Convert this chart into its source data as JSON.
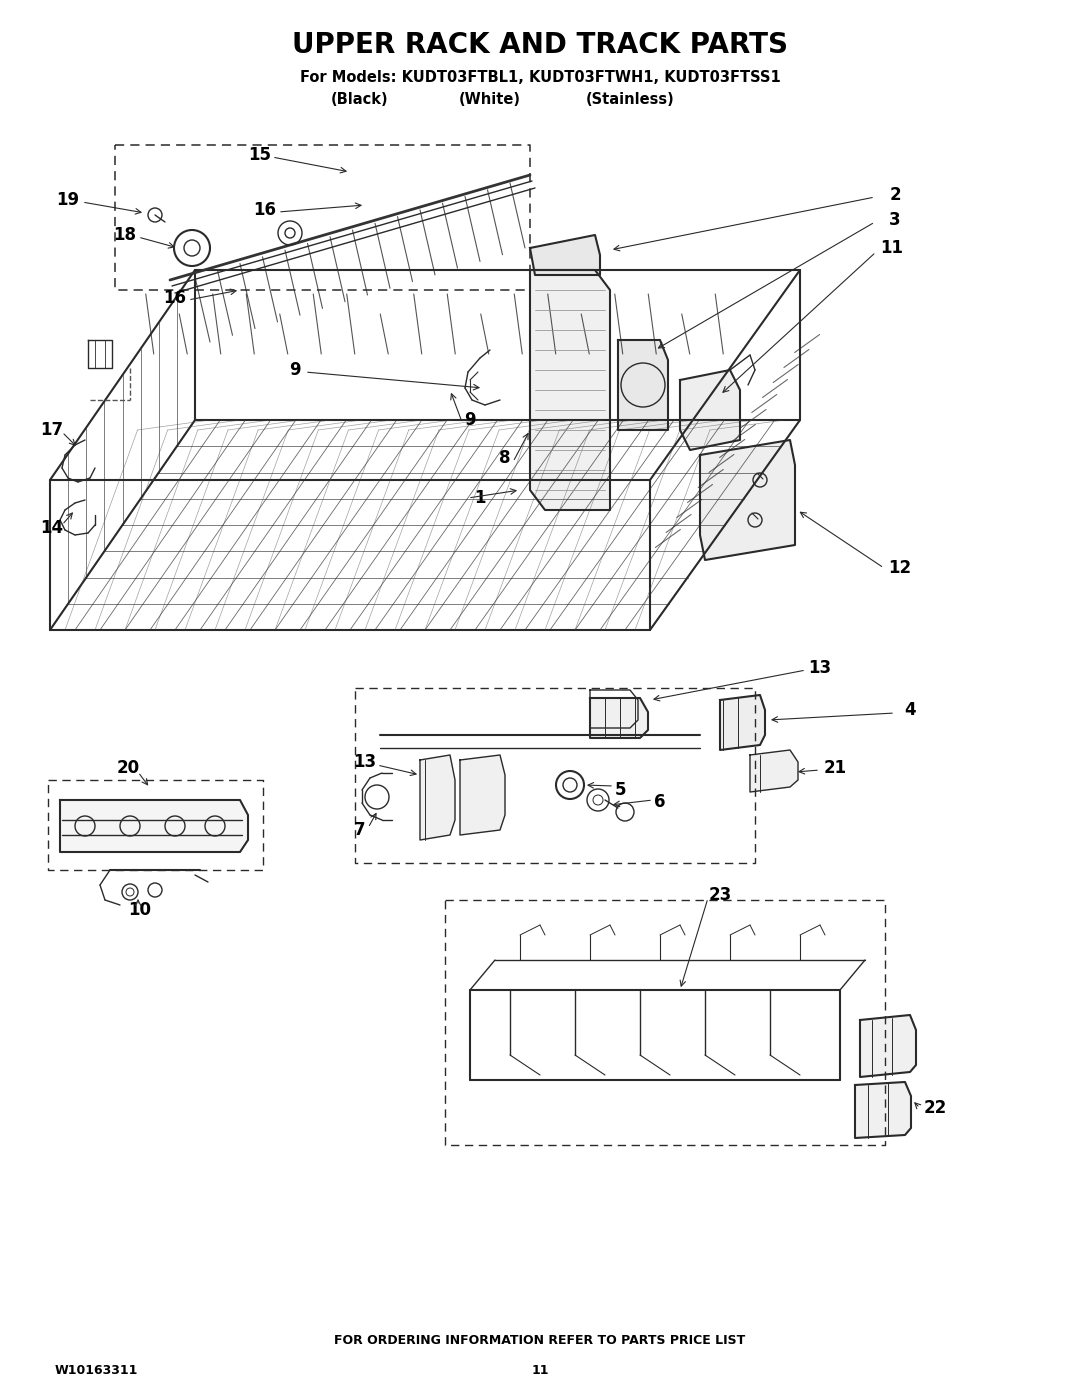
{
  "title": "UPPER RACK AND TRACK PARTS",
  "subtitle_line1": "For Models: KUDT03FTBL1, KUDT03FTWH1, KUDT03FTSS1",
  "subtitle_line2_black": "(Black)",
  "subtitle_line2_white": "(White)",
  "subtitle_line2_stainless": "(Stainless)",
  "footer_left": "W10163311",
  "footer_center": "11",
  "footer_bottom": "FOR ORDERING INFORMATION REFER TO PARTS PRICE LIST",
  "bg_color": "#ffffff",
  "text_color": "#000000",
  "line_color": "#2a2a2a",
  "title_fontsize": 20,
  "subtitle_fontsize": 10.5,
  "footer_fontsize": 9,
  "label_fontsize": 12,
  "fig_width": 10.8,
  "fig_height": 13.97
}
